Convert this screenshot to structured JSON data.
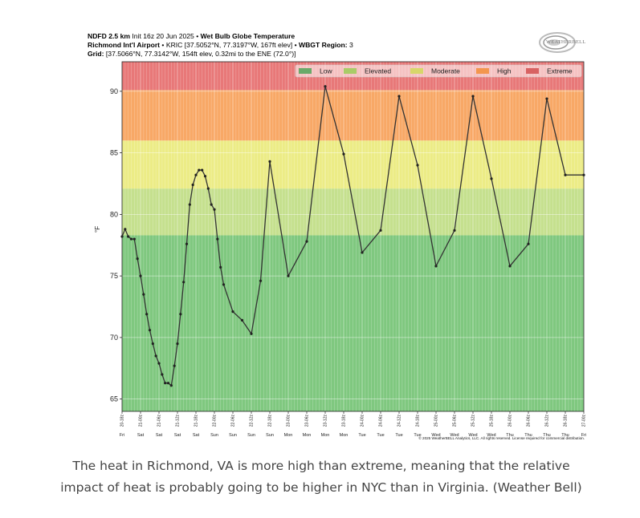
{
  "header": {
    "line1_bold1": "NDFD 2.5 km",
    "line1_rest": " Init 16z 20 Jun 2025 • ",
    "line1_bold2": "Wet Bulb Globe Temperature",
    "line2_bold1": "Richmond Int'l Airport",
    "line2_rest": " • KRIC [37.5052°N, 77.3197°W, 167ft elev] • ",
    "line2_bold2": "WBGT Region:",
    "line2_tail": " 3",
    "line3_bold": "Grid:",
    "line3_rest": " [37.5066°N, 77.3142°W, 154ft elev, 0.32mi to the ENE (72.0°)]"
  },
  "logo": {
    "text": "WEATHERBELL",
    "icon": "weatherbell-swirl-logo"
  },
  "caption": "The heat in Richmond, VA is more high than extreme, meaning that the relative impact of heat is probably going to be higher in NYC than in Virginia. (Weather Bell)",
  "copyright": "© 2025 WeatherBELL Analytics, LLC. All rights reserved. License required for commercial distribution.",
  "colors": {
    "low": "#7fc87f",
    "elevated": "#c5e08e",
    "moderate": "#ecec86",
    "high": "#f8a866",
    "extreme": "#e87878",
    "line": "#333333"
  },
  "chart_data": {
    "type": "line",
    "title": "Wet Bulb Globe Temperature",
    "ylabel": "°F",
    "xlabel": "",
    "ylim": [
      64,
      92.4
    ],
    "yticks": [
      65,
      70,
      75,
      80,
      85,
      90
    ],
    "legend": {
      "placement": "top-right",
      "entries": [
        {
          "label": "Low",
          "color": "#6aaa6a"
        },
        {
          "label": "Elevated",
          "color": "#a9cc68"
        },
        {
          "label": "Moderate",
          "color": "#d7d76a"
        },
        {
          "label": "High",
          "color": "#f3964e"
        },
        {
          "label": "Extreme",
          "color": "#d86262"
        }
      ]
    },
    "bands": [
      {
        "name": "Low",
        "from": 64,
        "to": 78.3
      },
      {
        "name": "Elevated",
        "from": 78.3,
        "to": 82.1
      },
      {
        "name": "Moderate",
        "from": 82.1,
        "to": 86
      },
      {
        "name": "High",
        "from": 86,
        "to": 90.1
      },
      {
        "name": "Extreme",
        "from": 90.1,
        "to": 92.4
      }
    ],
    "x_tick_labels": [
      {
        "t": 0,
        "time": "20-18z",
        "day": "Fri"
      },
      {
        "t": 6,
        "time": "21-00z",
        "day": "Sat"
      },
      {
        "t": 12,
        "time": "21-06z",
        "day": "Sat"
      },
      {
        "t": 18,
        "time": "21-12z",
        "day": "Sat"
      },
      {
        "t": 24,
        "time": "21-18z",
        "day": "Sat"
      },
      {
        "t": 30,
        "time": "22-00z",
        "day": "Sun"
      },
      {
        "t": 36,
        "time": "22-06z",
        "day": "Sun"
      },
      {
        "t": 42,
        "time": "22-12z",
        "day": "Sun"
      },
      {
        "t": 48,
        "time": "22-18z",
        "day": "Sun"
      },
      {
        "t": 54,
        "time": "23-00z",
        "day": "Mon"
      },
      {
        "t": 60,
        "time": "23-06z",
        "day": "Mon"
      },
      {
        "t": 66,
        "time": "23-12z",
        "day": "Mon"
      },
      {
        "t": 72,
        "time": "23-18z",
        "day": "Mon"
      },
      {
        "t": 78,
        "time": "24-00z",
        "day": "Tue"
      },
      {
        "t": 84,
        "time": "24-06z",
        "day": "Tue"
      },
      {
        "t": 90,
        "time": "24-12z",
        "day": "Tue"
      },
      {
        "t": 96,
        "time": "24-18z",
        "day": "Tue"
      },
      {
        "t": 102,
        "time": "25-00z",
        "day": "Wed"
      },
      {
        "t": 108,
        "time": "25-06z",
        "day": "Wed"
      },
      {
        "t": 114,
        "time": "25-12z",
        "day": "Wed"
      },
      {
        "t": 120,
        "time": "25-18z",
        "day": "Wed"
      },
      {
        "t": 126,
        "time": "26-00z",
        "day": "Thu"
      },
      {
        "t": 132,
        "time": "26-06z",
        "day": "Thu"
      },
      {
        "t": 138,
        "time": "26-12z",
        "day": "Thu"
      },
      {
        "t": 144,
        "time": "26-18z",
        "day": "Thu"
      },
      {
        "t": 150,
        "time": "27-00z",
        "day": "Fri"
      }
    ],
    "x_range": [
      0,
      150
    ],
    "series": [
      {
        "x": [
          0,
          1,
          2,
          3,
          4,
          5,
          6,
          7,
          8,
          9,
          10,
          11,
          12,
          13,
          14,
          15,
          16,
          17,
          18,
          19,
          20,
          21,
          22,
          23,
          24,
          25,
          26,
          27,
          28,
          29,
          30,
          31,
          32,
          33,
          36,
          39,
          42,
          45,
          48,
          54,
          60,
          66,
          72,
          78,
          84,
          90,
          96,
          102,
          108,
          114,
          120,
          126,
          132,
          138,
          144,
          150
        ],
        "y": [
          78.2,
          78.8,
          78.2,
          78.0,
          78.0,
          76.4,
          75.0,
          73.5,
          71.9,
          70.6,
          69.5,
          68.5,
          67.9,
          67.0,
          66.3,
          66.3,
          66.1,
          67.7,
          69.5,
          71.9,
          74.5,
          77.6,
          80.8,
          82.4,
          83.2,
          83.6,
          83.6,
          83.1,
          82.1,
          80.8,
          80.4,
          78.0,
          75.7,
          74.3,
          72.1,
          71.4,
          70.3,
          74.6,
          84.3,
          75.0,
          77.8,
          90.4,
          84.9,
          76.9,
          78.7,
          89.6,
          84.0,
          75.8,
          78.7,
          89.6,
          82.9,
          75.8,
          77.6,
          89.4,
          83.2,
          83.2
        ],
        "y_note": ""
      }
    ]
  }
}
